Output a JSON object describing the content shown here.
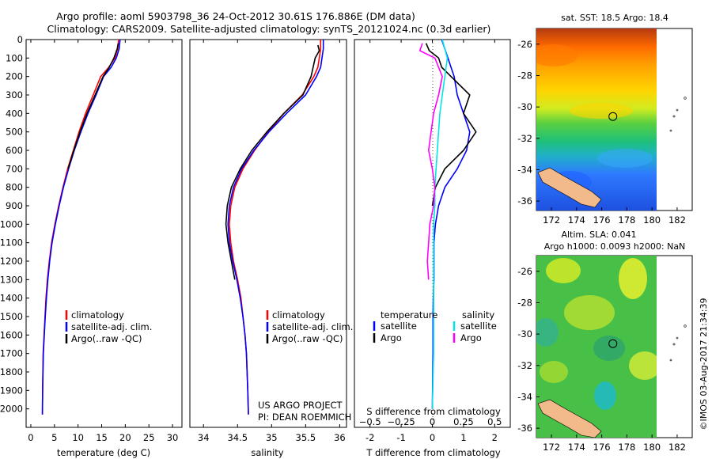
{
  "header": {
    "line1": "Argo profile: aoml 5903798_36 24-Oct-2012 30.61S 176.886E (DM data)",
    "line2": "Climatology: CARS2009. Satellite-adjusted climatology: synTS_20121024.nc (0.3d earlier)"
  },
  "side_stamp": "©IMOS 03-Aug-2017 21:34:39",
  "colors": {
    "climatology": "#ff0000",
    "satellite": "#0000ff",
    "argo": "#000000",
    "s_sat": "#00e5e5",
    "s_argo": "#ff00ff"
  },
  "chart_data": [
    {
      "id": "temperature",
      "type": "line",
      "xlabel": "temperature (deg C)",
      "ylabel": "",
      "xlim": [
        -1,
        32
      ],
      "ylim": [
        2100,
        0
      ],
      "xticks": [
        0,
        5,
        10,
        15,
        20,
        25,
        30
      ],
      "yticks": [
        0,
        100,
        200,
        300,
        400,
        500,
        600,
        700,
        800,
        900,
        1000,
        1100,
        1200,
        1300,
        1400,
        1500,
        1600,
        1700,
        1800,
        1900,
        2000
      ],
      "legend": {
        "placement": "lower-left",
        "entries": [
          "climatology",
          "satellite-adj. clim.",
          "Argo(..raw -QC)"
        ]
      },
      "series": [
        {
          "name": "climatology",
          "color": "#ff0000",
          "x": [
            18.6,
            18.4,
            17.8,
            16.5,
            14.8,
            13.2,
            11.6,
            10.2,
            9.0,
            7.8,
            6.8,
            5.9,
            5.1,
            4.4,
            3.9,
            3.5,
            3.2,
            3.0,
            2.8,
            2.6,
            2.5,
            2.45
          ],
          "y": [
            0,
            50,
            100,
            150,
            200,
            300,
            400,
            500,
            600,
            700,
            800,
            900,
            1000,
            1100,
            1200,
            1300,
            1400,
            1500,
            1600,
            1700,
            1900,
            2030
          ]
        },
        {
          "name": "satellite-adj. clim.",
          "color": "#0000ff",
          "x": [
            18.9,
            18.7,
            18.1,
            17.0,
            15.4,
            13.8,
            12.1,
            10.6,
            9.2,
            8.0,
            6.9,
            6.0,
            5.2,
            4.5,
            4.0,
            3.6,
            3.3,
            3.05,
            2.85,
            2.65,
            2.5,
            2.45
          ],
          "y": [
            0,
            50,
            100,
            150,
            200,
            300,
            400,
            500,
            600,
            700,
            800,
            900,
            1000,
            1100,
            1200,
            1300,
            1400,
            1500,
            1600,
            1700,
            1900,
            2030
          ]
        },
        {
          "name": "Argo(..raw -QC)",
          "color": "#000000",
          "x": [
            18.5,
            18.3,
            17.6,
            16.6,
            15.3,
            13.6,
            11.9,
            10.4,
            9.1,
            7.9
          ],
          "y": [
            20,
            50,
            100,
            150,
            200,
            300,
            400,
            500,
            600,
            700
          ]
        }
      ]
    },
    {
      "id": "salinity",
      "type": "line",
      "xlabel": "salinity",
      "ylabel": "",
      "xlim": [
        33.8,
        36.1
      ],
      "ylim": [
        2100,
        0
      ],
      "xticks": [
        34,
        34.5,
        35,
        35.5,
        36
      ],
      "xticklabels": [
        "34",
        "34.5",
        "35",
        "35.5",
        "36"
      ],
      "legend": {
        "placement": "lower-center",
        "entries": [
          "climatology",
          "satellite-adj. clim.",
          "Argo(..raw -QC)"
        ]
      },
      "annotation": [
        "US ARGO PROJECT",
        "PI: DEAN ROEMMICH"
      ],
      "series": [
        {
          "name": "climatology",
          "color": "#ff0000",
          "x": [
            35.72,
            35.72,
            35.7,
            35.68,
            35.62,
            35.45,
            35.18,
            34.95,
            34.75,
            34.58,
            34.46,
            34.4,
            34.38,
            34.4,
            34.44,
            34.5,
            34.55,
            34.58,
            34.61,
            34.63,
            34.65,
            34.66
          ],
          "y": [
            0,
            50,
            100,
            150,
            200,
            300,
            400,
            500,
            600,
            700,
            800,
            900,
            1000,
            1100,
            1200,
            1300,
            1400,
            1500,
            1600,
            1700,
            1900,
            2030
          ]
        },
        {
          "name": "satellite-adj. clim.",
          "color": "#0000ff",
          "x": [
            35.76,
            35.76,
            35.74,
            35.72,
            35.66,
            35.5,
            35.22,
            34.96,
            34.74,
            34.56,
            34.44,
            34.38,
            34.36,
            34.38,
            34.43,
            34.49,
            34.54,
            34.58,
            34.61,
            34.63,
            34.65,
            34.66
          ],
          "y": [
            0,
            50,
            100,
            150,
            200,
            300,
            400,
            500,
            600,
            700,
            800,
            900,
            1000,
            1100,
            1200,
            1300,
            1400,
            1500,
            1600,
            1700,
            1900,
            2030
          ]
        },
        {
          "name": "Argo(..raw -QC)",
          "color": "#000000",
          "x": [
            35.68,
            35.7,
            35.64,
            35.58,
            35.46,
            35.18,
            34.93,
            34.71,
            34.54,
            34.41,
            34.35,
            34.33,
            34.36,
            34.41,
            34.46
          ],
          "y": [
            30,
            60,
            100,
            200,
            300,
            400,
            500,
            600,
            700,
            800,
            900,
            1000,
            1100,
            1200,
            1300
          ]
        }
      ]
    },
    {
      "id": "difference",
      "type": "line",
      "xlabel": "T difference from climatology",
      "xlabel2": "S difference from climatology",
      "xlim": [
        -2.5,
        2.5
      ],
      "ylim": [
        2100,
        0
      ],
      "xticks": [
        -2,
        -1,
        0,
        1,
        2
      ],
      "xticks2": [
        -0.5,
        -0.25,
        0,
        0.25,
        0.5
      ],
      "xticklabels2": [
        "−0.5",
        "−0.25",
        "0",
        "0.25",
        "0.5"
      ],
      "legend": {
        "placement": "lower-center",
        "headers": [
          "temperature",
          "salinity"
        ],
        "entries": [
          "satellite",
          "Argo",
          "satellite",
          "Argo"
        ]
      },
      "series": [
        {
          "name": "T satellite",
          "color": "#0000ff",
          "x": [
            0.3,
            0.4,
            0.5,
            0.6,
            0.7,
            0.8,
            1.0,
            1.2,
            1.1,
            0.8,
            0.4,
            0.2,
            0.1,
            0.05,
            0.05,
            0.05,
            0.03,
            0.02,
            0.02,
            0.0
          ],
          "y": [
            0,
            50,
            100,
            150,
            200,
            300,
            400,
            500,
            600,
            700,
            800,
            900,
            1000,
            1100,
            1200,
            1300,
            1400,
            1500,
            1700,
            2000
          ]
        },
        {
          "name": "T Argo",
          "color": "#000000",
          "x": [
            -0.2,
            -0.1,
            0.2,
            0.3,
            0.6,
            1.2,
            1.0,
            1.4,
            1.0,
            0.4,
            0.1,
            0.0
          ],
          "y": [
            20,
            60,
            100,
            150,
            200,
            300,
            400,
            500,
            600,
            700,
            800,
            900
          ]
        },
        {
          "name": "S satellite",
          "color": "#00e5e5",
          "x": [
            0.08,
            0.1,
            0.12,
            0.1,
            0.08,
            0.06,
            0.05,
            0.04,
            0.03,
            0.02,
            0.02,
            0.01,
            0.01,
            0.01,
            0.01,
            0.0
          ],
          "y": [
            0,
            50,
            100,
            200,
            300,
            400,
            500,
            600,
            700,
            800,
            900,
            1000,
            1200,
            1400,
            1700,
            2000
          ]
        },
        {
          "name": "S Argo",
          "color": "#ff00ff",
          "x": [
            -0.08,
            -0.1,
            0.02,
            0.08,
            0.05,
            0.01,
            -0.01,
            -0.03,
            0.0,
            0.02,
            0.01,
            -0.02,
            -0.03,
            -0.04,
            -0.03
          ],
          "y": [
            20,
            60,
            100,
            200,
            300,
            400,
            500,
            600,
            700,
            800,
            900,
            1000,
            1100,
            1200,
            1300
          ]
        }
      ]
    },
    {
      "id": "map_sst",
      "type": "heatmap",
      "title": "sat. SST: 18.5  Argo: 18.4",
      "xlim": [
        170.8,
        183.2
      ],
      "ylim": [
        -36.6,
        -25
      ],
      "xticks": [
        172,
        174,
        176,
        178,
        180,
        182
      ],
      "yticks": [
        -26,
        -28,
        -30,
        -32,
        -34,
        -36
      ],
      "marker": {
        "lon": 176.886,
        "lat": -30.61
      }
    },
    {
      "id": "map_sla",
      "type": "heatmap",
      "title": "Altim. SLA: 0.041",
      "subtitle": "Argo h1000: 0.0093  h2000: NaN",
      "xlim": [
        170.8,
        183.2
      ],
      "ylim": [
        -36.6,
        -25
      ],
      "xticks": [
        172,
        174,
        176,
        178,
        180,
        182
      ],
      "yticks": [
        -26,
        -28,
        -30,
        -32,
        -34,
        -36
      ],
      "marker": {
        "lon": 176.886,
        "lat": -30.61
      }
    }
  ]
}
